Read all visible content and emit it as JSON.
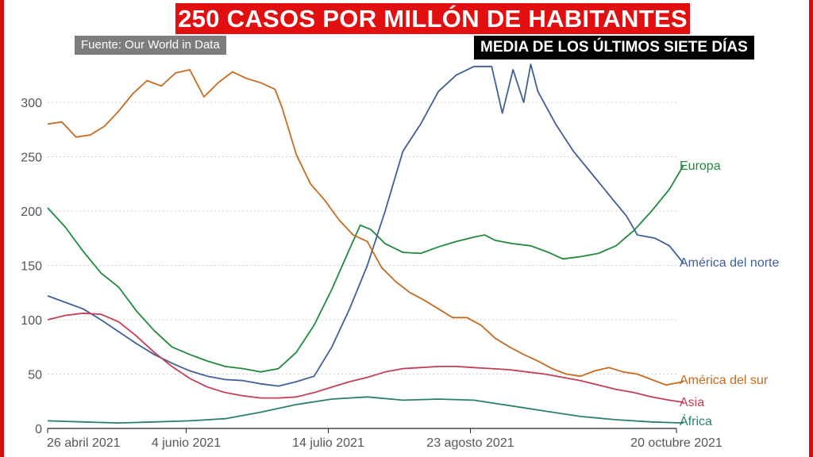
{
  "header": {
    "title": "250 CASOS POR MILLÓN DE HABITANTES",
    "source": "Fuente: Our World in Data",
    "subtitle": "MEDIA DE LOS ÚLTIMOS SIETE DÍAS"
  },
  "chart_data": {
    "type": "line",
    "title": "250 CASOS POR MILLÓN DE HABITANTES",
    "subtitle": "MEDIA DE LOS ÚLTIMOS SIETE DÍAS",
    "xlabel": "",
    "ylabel": "",
    "ylim": [
      0,
      340
    ],
    "xlim": [
      "2021-04-26",
      "2021-10-20"
    ],
    "grid": true,
    "yticks": [
      0,
      50,
      100,
      150,
      200,
      250,
      300
    ],
    "xticks": [
      {
        "date": "2021-04-26",
        "label": "26 abril 2021"
      },
      {
        "date": "2021-06-04",
        "label": "4 junio 2021"
      },
      {
        "date": "2021-07-14",
        "label": "14 julio 2021"
      },
      {
        "date": "2021-08-23",
        "label": "23 agosto 2021"
      },
      {
        "date": "2021-10-20",
        "label": "20 octubre 2021"
      }
    ],
    "series": [
      {
        "name": "Europa",
        "color": "#1e8a3a",
        "data": [
          [
            "2021-04-26",
            203
          ],
          [
            "2021-05-01",
            185
          ],
          [
            "2021-05-06",
            163
          ],
          [
            "2021-05-11",
            143
          ],
          [
            "2021-05-16",
            130
          ],
          [
            "2021-05-21",
            108
          ],
          [
            "2021-05-26",
            90
          ],
          [
            "2021-05-31",
            75
          ],
          [
            "2021-06-05",
            68
          ],
          [
            "2021-06-10",
            62
          ],
          [
            "2021-06-15",
            57
          ],
          [
            "2021-06-20",
            55
          ],
          [
            "2021-06-25",
            52
          ],
          [
            "2021-06-30",
            55
          ],
          [
            "2021-07-05",
            70
          ],
          [
            "2021-07-10",
            95
          ],
          [
            "2021-07-15",
            128
          ],
          [
            "2021-07-20",
            165
          ],
          [
            "2021-07-23",
            187
          ],
          [
            "2021-07-26",
            183
          ],
          [
            "2021-07-30",
            170
          ],
          [
            "2021-08-04",
            162
          ],
          [
            "2021-08-09",
            161
          ],
          [
            "2021-08-14",
            167
          ],
          [
            "2021-08-19",
            172
          ],
          [
            "2021-08-24",
            176
          ],
          [
            "2021-08-27",
            178
          ],
          [
            "2021-08-30",
            173
          ],
          [
            "2021-09-04",
            170
          ],
          [
            "2021-09-09",
            168
          ],
          [
            "2021-09-14",
            162
          ],
          [
            "2021-09-18",
            156
          ],
          [
            "2021-09-23",
            158
          ],
          [
            "2021-09-28",
            161
          ],
          [
            "2021-10-03",
            168
          ],
          [
            "2021-10-08",
            182
          ],
          [
            "2021-10-13",
            200
          ],
          [
            "2021-10-18",
            220
          ],
          [
            "2021-10-22",
            242
          ]
        ]
      },
      {
        "name": "América del norte",
        "color": "#3f5f98",
        "data": [
          [
            "2021-04-26",
            122
          ],
          [
            "2021-05-01",
            116
          ],
          [
            "2021-05-06",
            110
          ],
          [
            "2021-05-11",
            100
          ],
          [
            "2021-05-16",
            89
          ],
          [
            "2021-05-21",
            78
          ],
          [
            "2021-05-26",
            68
          ],
          [
            "2021-05-31",
            60
          ],
          [
            "2021-06-05",
            53
          ],
          [
            "2021-06-10",
            48
          ],
          [
            "2021-06-15",
            45
          ],
          [
            "2021-06-20",
            44
          ],
          [
            "2021-06-25",
            41
          ],
          [
            "2021-06-30",
            39
          ],
          [
            "2021-07-05",
            43
          ],
          [
            "2021-07-10",
            48
          ],
          [
            "2021-07-15",
            75
          ],
          [
            "2021-07-20",
            110
          ],
          [
            "2021-07-25",
            150
          ],
          [
            "2021-07-30",
            200
          ],
          [
            "2021-08-04",
            255
          ],
          [
            "2021-08-09",
            280
          ],
          [
            "2021-08-14",
            310
          ],
          [
            "2021-08-19",
            325
          ],
          [
            "2021-08-24",
            333
          ],
          [
            "2021-08-29",
            333
          ],
          [
            "2021-09-01",
            290
          ],
          [
            "2021-09-04",
            330
          ],
          [
            "2021-09-07",
            300
          ],
          [
            "2021-09-09",
            335
          ],
          [
            "2021-09-11",
            310
          ],
          [
            "2021-09-16",
            280
          ],
          [
            "2021-09-21",
            255
          ],
          [
            "2021-09-26",
            235
          ],
          [
            "2021-10-01",
            215
          ],
          [
            "2021-10-06",
            195
          ],
          [
            "2021-10-09",
            178
          ],
          [
            "2021-10-14",
            175
          ],
          [
            "2021-10-18",
            168
          ],
          [
            "2021-10-22",
            152
          ]
        ]
      },
      {
        "name": "América del sur",
        "color": "#c86a1f",
        "data": [
          [
            "2021-04-26",
            280
          ],
          [
            "2021-04-30",
            282
          ],
          [
            "2021-05-04",
            268
          ],
          [
            "2021-05-08",
            270
          ],
          [
            "2021-05-12",
            278
          ],
          [
            "2021-05-16",
            292
          ],
          [
            "2021-05-20",
            308
          ],
          [
            "2021-05-24",
            320
          ],
          [
            "2021-05-28",
            315
          ],
          [
            "2021-06-01",
            327
          ],
          [
            "2021-06-05",
            330
          ],
          [
            "2021-06-09",
            305
          ],
          [
            "2021-06-13",
            318
          ],
          [
            "2021-06-17",
            328
          ],
          [
            "2021-06-21",
            322
          ],
          [
            "2021-06-25",
            318
          ],
          [
            "2021-06-29",
            312
          ],
          [
            "2021-07-01",
            295
          ],
          [
            "2021-07-05",
            252
          ],
          [
            "2021-07-09",
            225
          ],
          [
            "2021-07-13",
            210
          ],
          [
            "2021-07-17",
            192
          ],
          [
            "2021-07-21",
            178
          ],
          [
            "2021-07-25",
            172
          ],
          [
            "2021-07-29",
            148
          ],
          [
            "2021-08-02",
            135
          ],
          [
            "2021-08-06",
            125
          ],
          [
            "2021-08-10",
            118
          ],
          [
            "2021-08-14",
            110
          ],
          [
            "2021-08-18",
            102
          ],
          [
            "2021-08-22",
            102
          ],
          [
            "2021-08-26",
            95
          ],
          [
            "2021-08-30",
            83
          ],
          [
            "2021-09-03",
            75
          ],
          [
            "2021-09-07",
            68
          ],
          [
            "2021-09-11",
            62
          ],
          [
            "2021-09-15",
            55
          ],
          [
            "2021-09-19",
            50
          ],
          [
            "2021-09-23",
            48
          ],
          [
            "2021-09-27",
            53
          ],
          [
            "2021-10-01",
            56
          ],
          [
            "2021-10-05",
            52
          ],
          [
            "2021-10-09",
            50
          ],
          [
            "2021-10-13",
            45
          ],
          [
            "2021-10-17",
            40
          ],
          [
            "2021-10-22",
            43
          ]
        ]
      },
      {
        "name": "Asia",
        "color": "#c43e56",
        "data": [
          [
            "2021-04-26",
            100
          ],
          [
            "2021-05-01",
            104
          ],
          [
            "2021-05-06",
            106
          ],
          [
            "2021-05-11",
            105
          ],
          [
            "2021-05-16",
            98
          ],
          [
            "2021-05-21",
            85
          ],
          [
            "2021-05-26",
            70
          ],
          [
            "2021-05-31",
            57
          ],
          [
            "2021-06-05",
            46
          ],
          [
            "2021-06-10",
            38
          ],
          [
            "2021-06-15",
            33
          ],
          [
            "2021-06-20",
            30
          ],
          [
            "2021-06-25",
            28
          ],
          [
            "2021-06-30",
            28
          ],
          [
            "2021-07-05",
            29
          ],
          [
            "2021-07-10",
            33
          ],
          [
            "2021-07-15",
            38
          ],
          [
            "2021-07-20",
            43
          ],
          [
            "2021-07-25",
            47
          ],
          [
            "2021-07-30",
            52
          ],
          [
            "2021-08-04",
            55
          ],
          [
            "2021-08-09",
            56
          ],
          [
            "2021-08-14",
            57
          ],
          [
            "2021-08-19",
            57
          ],
          [
            "2021-08-24",
            56
          ],
          [
            "2021-08-29",
            55
          ],
          [
            "2021-09-03",
            54
          ],
          [
            "2021-09-08",
            52
          ],
          [
            "2021-09-13",
            50
          ],
          [
            "2021-09-18",
            47
          ],
          [
            "2021-09-23",
            44
          ],
          [
            "2021-09-28",
            40
          ],
          [
            "2021-10-03",
            36
          ],
          [
            "2021-10-08",
            33
          ],
          [
            "2021-10-13",
            29
          ],
          [
            "2021-10-18",
            26
          ],
          [
            "2021-10-22",
            24
          ]
        ]
      },
      {
        "name": "África",
        "color": "#2a7f6e",
        "data": [
          [
            "2021-04-26",
            7
          ],
          [
            "2021-05-06",
            6
          ],
          [
            "2021-05-16",
            5
          ],
          [
            "2021-05-26",
            6
          ],
          [
            "2021-06-05",
            7
          ],
          [
            "2021-06-15",
            9
          ],
          [
            "2021-06-25",
            15
          ],
          [
            "2021-07-05",
            22
          ],
          [
            "2021-07-15",
            27
          ],
          [
            "2021-07-25",
            29
          ],
          [
            "2021-08-04",
            26
          ],
          [
            "2021-08-14",
            27
          ],
          [
            "2021-08-24",
            26
          ],
          [
            "2021-09-03",
            21
          ],
          [
            "2021-09-13",
            16
          ],
          [
            "2021-09-23",
            11
          ],
          [
            "2021-10-03",
            8
          ],
          [
            "2021-10-13",
            6
          ],
          [
            "2021-10-22",
            5
          ]
        ]
      }
    ]
  }
}
